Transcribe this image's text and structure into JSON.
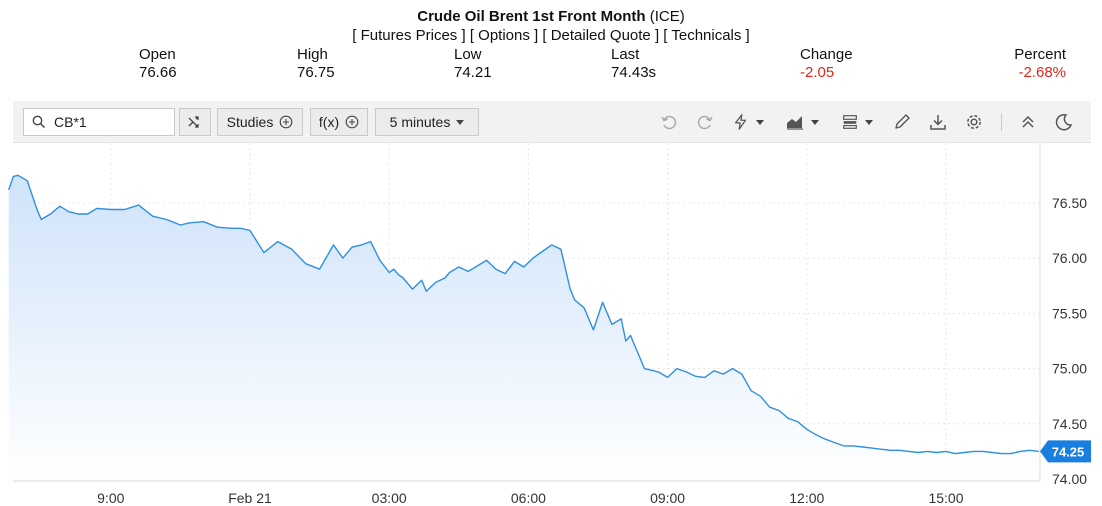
{
  "header": {
    "title": "Crude Oil Brent 1st Front Month",
    "exchange": "(ICE)",
    "links": [
      "[ Futures Prices ]",
      "[ Options ]",
      "[ Detailed Quote ]",
      "[ Technicals ]"
    ]
  },
  "stats": {
    "open_label": "Open",
    "open_value": "76.66",
    "high_label": "High",
    "high_value": "76.75",
    "low_label": "Low",
    "low_value": "74.21",
    "last_label": "Last",
    "last_value": "74.43s",
    "change_label": "Change",
    "change_value": "-2.05",
    "percent_label": "Percent",
    "percent_value": "-2.68%",
    "negative_color": "#e0261a"
  },
  "toolbar": {
    "search_value": "CB*1",
    "studies_label": "Studies",
    "fx_label": "f(x)",
    "interval_label": "5 minutes",
    "icons": [
      "search-icon",
      "compare-icon",
      "add-circle-icon",
      "undo-icon",
      "redo-icon",
      "lightning-icon",
      "chart-type-icon",
      "layout-icon",
      "pencil-icon",
      "download-icon",
      "gear-icon",
      "collapse-icon",
      "moon-icon"
    ]
  },
  "chart_data": {
    "type": "area",
    "line_color": "#2f8fe0",
    "fill_color_top": "#cfe3fa",
    "fill_color_bottom": "#ffffff",
    "ylim": [
      74.0,
      76.85
    ],
    "x_range_hours": [
      -8,
      17.8
    ],
    "x_ticks": [
      {
        "label": "9:00",
        "h": -3.0
      },
      {
        "label": "Feb 21",
        "h": 0
      },
      {
        "label": "03:00",
        "h": 3
      },
      {
        "label": "06:00",
        "h": 6
      },
      {
        "label": "09:00",
        "h": 9
      },
      {
        "label": "12:00",
        "h": 12
      },
      {
        "label": "15:00",
        "h": 15
      }
    ],
    "y_ticks": [
      "76.50",
      "76.00",
      "75.50",
      "75.00",
      "74.50",
      "74.00"
    ],
    "last_price_label": "74.25",
    "x": [
      -5.2,
      -5.1,
      -5.0,
      -4.8,
      -4.6,
      -4.5,
      -4.3,
      -4.1,
      -3.9,
      -3.7,
      -3.5,
      -3.3,
      -3.0,
      -2.7,
      -2.4,
      -2.1,
      -1.8,
      -1.5,
      -1.3,
      -1.0,
      -0.7,
      -0.4,
      -0.2,
      0.0,
      0.3,
      0.6,
      0.9,
      1.2,
      1.5,
      1.8,
      2.0,
      2.2,
      2.4,
      2.6,
      2.8,
      3.0,
      3.1,
      3.2,
      3.3,
      3.5,
      3.7,
      3.8,
      4.0,
      4.2,
      4.3,
      4.5,
      4.7,
      4.9,
      5.1,
      5.3,
      5.5,
      5.7,
      5.9,
      6.1,
      6.3,
      6.5,
      6.7,
      6.9,
      7.0,
      7.2,
      7.4,
      7.6,
      7.8,
      8.0,
      8.1,
      8.2,
      8.3,
      8.4,
      8.5,
      8.6,
      8.8,
      9.0,
      9.2,
      9.4,
      9.6,
      9.8,
      10.0,
      10.2,
      10.4,
      10.6,
      10.8,
      11.0,
      11.2,
      11.4,
      11.6,
      11.8,
      12.0,
      12.2,
      12.4,
      12.6,
      12.8,
      13.0,
      13.2,
      13.4,
      13.6,
      13.8,
      14.0,
      14.2,
      14.4,
      14.6,
      14.8,
      15.0,
      15.2,
      15.4,
      15.6,
      15.8,
      16.0,
      16.2,
      16.4,
      16.6,
      16.8,
      17.0
    ],
    "y": [
      76.62,
      76.74,
      76.75,
      76.7,
      76.45,
      76.35,
      76.4,
      76.47,
      76.42,
      76.4,
      76.4,
      76.45,
      76.44,
      76.44,
      76.48,
      76.38,
      76.35,
      76.3,
      76.32,
      76.33,
      76.28,
      76.27,
      76.27,
      76.25,
      76.05,
      76.15,
      76.08,
      75.95,
      75.9,
      76.12,
      76.0,
      76.1,
      76.12,
      76.15,
      75.98,
      75.87,
      75.9,
      75.85,
      75.82,
      75.72,
      75.8,
      75.7,
      75.78,
      75.82,
      75.87,
      75.92,
      75.88,
      75.93,
      75.98,
      75.9,
      75.86,
      75.97,
      75.92,
      76.0,
      76.06,
      76.12,
      76.08,
      75.72,
      75.62,
      75.55,
      75.35,
      75.6,
      75.4,
      75.45,
      75.25,
      75.3,
      75.2,
      75.1,
      75.0,
      74.99,
      74.97,
      74.92,
      75.0,
      74.97,
      74.93,
      74.92,
      74.98,
      74.95,
      75.0,
      74.95,
      74.8,
      74.75,
      74.65,
      74.62,
      74.55,
      74.52,
      74.45,
      74.4,
      74.36,
      74.33,
      74.3,
      74.3,
      74.29,
      74.28,
      74.27,
      74.26,
      74.26,
      74.25,
      74.24,
      74.25,
      74.24,
      74.25,
      74.23,
      74.24,
      74.25,
      74.25,
      74.24,
      74.23,
      74.23,
      74.25,
      74.26,
      74.25
    ]
  }
}
